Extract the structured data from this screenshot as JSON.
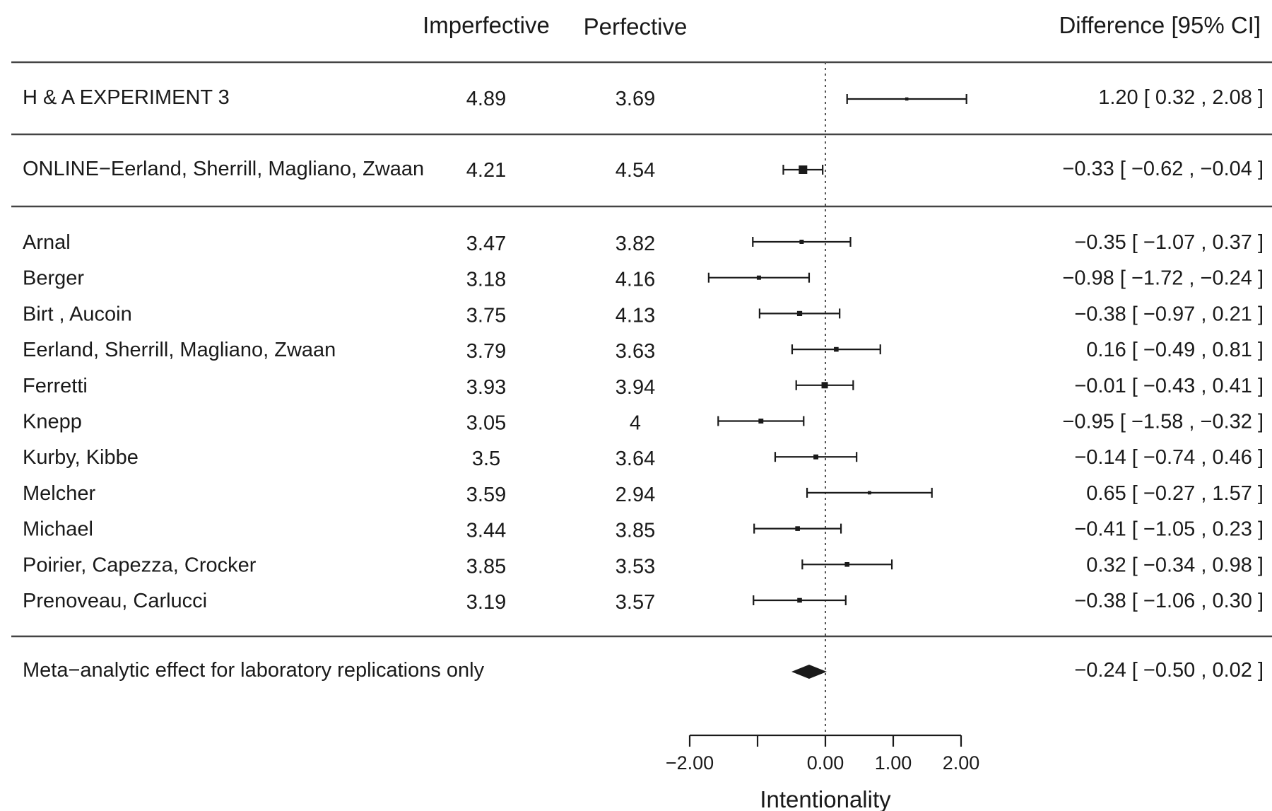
{
  "chart_data": {
    "type": "forest",
    "headers": {
      "imperfective": "Imperfective",
      "perfective": "Perfective",
      "difference": "Difference [95% CI]"
    },
    "original": {
      "label": "H & A EXPERIMENT 3",
      "imperfective": "4.89",
      "perfective": "3.69",
      "estimate": 1.2,
      "lower": 0.32,
      "upper": 2.08,
      "ci_text": "1.20 [  0.32 ,  2.08 ]"
    },
    "online": {
      "label": "ONLINE−Eerland, Sherrill, Magliano, Zwaan",
      "imperfective": "4.21",
      "perfective": "4.54",
      "estimate": -0.33,
      "lower": -0.62,
      "upper": -0.04,
      "weight": 3.0,
      "ci_text": "−0.33 [ −0.62 , −0.04 ]"
    },
    "studies": [
      {
        "label": "Arnal",
        "imperfective": "3.47",
        "perfective": "3.82",
        "estimate": -0.35,
        "lower": -1.07,
        "upper": 0.37,
        "weight": 1.0,
        "ci_text": "−0.35 [ −1.07 ,  0.37 ]"
      },
      {
        "label": "Berger",
        "imperfective": "3.18",
        "perfective": "4.16",
        "estimate": -0.98,
        "lower": -1.72,
        "upper": -0.24,
        "weight": 1.0,
        "ci_text": "−0.98 [ −1.72 , −0.24 ]"
      },
      {
        "label": "Birt , Aucoin",
        "imperfective": "3.75",
        "perfective": "4.13",
        "estimate": -0.38,
        "lower": -0.97,
        "upper": 0.21,
        "weight": 1.4,
        "ci_text": "−0.38 [ −0.97 ,  0.21 ]"
      },
      {
        "label": "Eerland, Sherrill, Magliano,  Zwaan",
        "imperfective": "3.79",
        "perfective": "3.63",
        "estimate": 0.16,
        "lower": -0.49,
        "upper": 0.81,
        "weight": 1.2,
        "ci_text": "0.16 [ −0.49 ,  0.81 ]"
      },
      {
        "label": "Ferretti",
        "imperfective": "3.93",
        "perfective": "3.94",
        "estimate": -0.01,
        "lower": -0.43,
        "upper": 0.41,
        "weight": 2.0,
        "ci_text": "−0.01 [ −0.43 ,  0.41 ]"
      },
      {
        "label": "Knepp",
        "imperfective": "3.05",
        "perfective": "4",
        "estimate": -0.95,
        "lower": -1.58,
        "upper": -0.32,
        "weight": 1.3,
        "ci_text": "−0.95 [ −1.58 , −0.32 ]"
      },
      {
        "label": "Kurby, Kibbe",
        "imperfective": "3.5",
        "perfective": "3.64",
        "estimate": -0.14,
        "lower": -0.74,
        "upper": 0.46,
        "weight": 1.3,
        "ci_text": "−0.14 [ −0.74 ,  0.46 ]"
      },
      {
        "label": "Melcher",
        "imperfective": "3.59",
        "perfective": "2.94",
        "estimate": 0.65,
        "lower": -0.27,
        "upper": 1.57,
        "weight": 0.6,
        "ci_text": "0.65 [ −0.27 ,  1.57 ]"
      },
      {
        "label": "Michael",
        "imperfective": "3.44",
        "perfective": "3.85",
        "estimate": -0.41,
        "lower": -1.05,
        "upper": 0.23,
        "weight": 1.2,
        "ci_text": "−0.41 [ −1.05 ,  0.23 ]"
      },
      {
        "label": "Poirier, Capezza, Crocker",
        "imperfective": "3.85",
        "perfective": "3.53",
        "estimate": 0.32,
        "lower": -0.34,
        "upper": 0.98,
        "weight": 1.2,
        "ci_text": "0.32 [ −0.34 ,  0.98 ]"
      },
      {
        "label": "Prenoveau, Carlucci",
        "imperfective": "3.19",
        "perfective": "3.57",
        "estimate": -0.38,
        "lower": -1.06,
        "upper": 0.3,
        "weight": 1.2,
        "ci_text": "−0.38 [ −1.06 ,  0.30 ]"
      }
    ],
    "summary": {
      "label": "Meta−analytic effect for laboratory replications only",
      "estimate": -0.24,
      "lower": -0.5,
      "upper": 0.02,
      "ci_text": "−0.24 [ −0.50 , 0.02 ]"
    },
    "reference_line": 0,
    "xaxis": {
      "label": "Intentionality",
      "ticks": [
        -2,
        -1,
        0,
        1,
        2
      ],
      "tick_labels": [
        "−2.00",
        "",
        "0.00",
        "1.00",
        "2.00"
      ]
    },
    "colors": {
      "ink": "#1a1a1a",
      "rule": "#444444",
      "reference": "#555555"
    }
  }
}
